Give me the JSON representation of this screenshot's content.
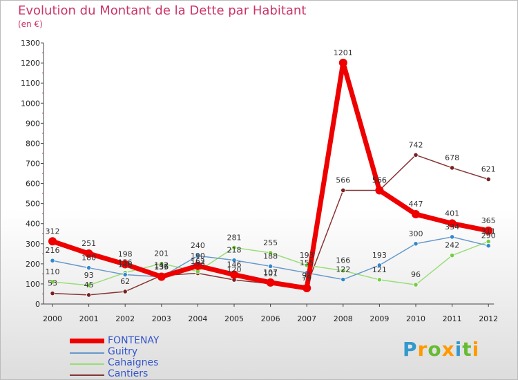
{
  "title": "Evolution du Montant de la Dette par Habitant",
  "subtitle": "(en €)",
  "logo": {
    "letters": [
      "P",
      "r",
      "o",
      "x",
      "i",
      "t",
      "i"
    ],
    "colors": [
      "#3399cc",
      "#ff9900",
      "#66bb33",
      "#ff9900",
      "#3399cc",
      "#66bb33",
      "#ff9900"
    ]
  },
  "chart_data": {
    "type": "line",
    "x": [
      "2000",
      "2001",
      "2002",
      "2003",
      "2004",
      "2005",
      "2006",
      "2007",
      "2008",
      "2009",
      "2010",
      "2011",
      "2012"
    ],
    "ylim": [
      0,
      1300
    ],
    "yticks": [
      0,
      100,
      200,
      300,
      400,
      500,
      600,
      700,
      800,
      900,
      1000,
      1100,
      1200,
      1300
    ],
    "grid": false,
    "legend_position": "bottom-left",
    "series": [
      {
        "name": "Cantiers",
        "color": "#883333",
        "width": 1.5,
        "marker": "#772222",
        "values": [
          53,
          45,
          62,
          142,
          153,
          120,
          101,
          91,
          566,
          566,
          742,
          678,
          621
        ],
        "labels": [
          "53",
          "45",
          "62",
          "142",
          "153",
          "120",
          "101",
          "91",
          "566",
          "566",
          "742",
          "678",
          "621"
        ]
      },
      {
        "name": "Cahaignes",
        "color": "#99dd77",
        "width": 1.5,
        "marker": "#77cc44",
        "values": [
          110,
          93,
          156,
          201,
          162,
          281,
          255,
          193,
          166,
          121,
          96,
          242,
          311
        ],
        "labels": [
          "110",
          "93",
          "156",
          "201",
          "162",
          "281",
          "255",
          "193",
          "166",
          "121",
          "96",
          "242",
          "311"
        ]
      },
      {
        "name": "Guitry",
        "color": "#6699cc",
        "width": 1.5,
        "marker": "#3388cc",
        "values": [
          216,
          180,
          146,
          135,
          240,
          218,
          188,
          155,
          122,
          193,
          300,
          334,
          290
        ],
        "labels": [
          "216",
          "180",
          "146",
          "135",
          "240",
          "218",
          "188",
          "155",
          "122",
          "193",
          "300",
          "334",
          "290"
        ]
      },
      {
        "name": "FONTENAY",
        "color": "#ee0000",
        "width": 7,
        "marker": "#ee0000",
        "values": [
          312,
          251,
          198,
          136,
          190,
          146,
          107,
          79,
          1201,
          566,
          447,
          401,
          365
        ],
        "labels": [
          "312",
          "251",
          "198",
          "136",
          "190",
          "146",
          "107",
          "79",
          "1201",
          "566",
          "447",
          "401",
          "365"
        ]
      }
    ]
  }
}
